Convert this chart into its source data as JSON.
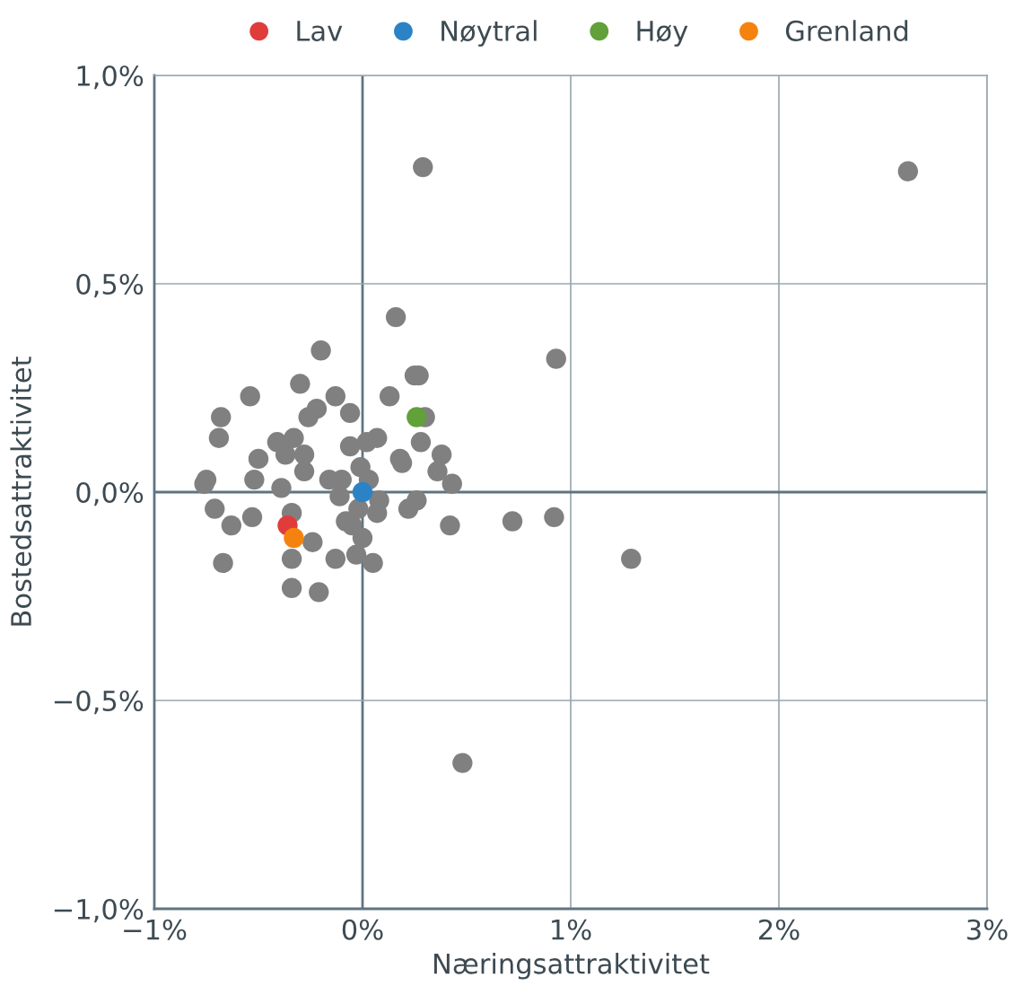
{
  "chart_data": {
    "type": "scatter",
    "xlabel": "Næringsattraktivitet",
    "ylabel": "Bostedsattraktivitet",
    "xlim": [
      -1,
      3
    ],
    "xticks": [
      {
        "value": -1,
        "label": "−1%"
      },
      {
        "value": 0,
        "label": "0%"
      },
      {
        "value": 1,
        "label": "1%"
      },
      {
        "value": 2,
        "label": "2%"
      },
      {
        "value": 3,
        "label": "3%"
      }
    ],
    "ylim": [
      -1,
      1
    ],
    "yticks": [
      {
        "value": -1,
        "label": "−1,0%"
      },
      {
        "value": -0.5,
        "label": "−0,5%"
      },
      {
        "value": 0,
        "label": "0,0%"
      },
      {
        "value": 0.5,
        "label": "0,5%"
      },
      {
        "value": 1,
        "label": "1,0%"
      }
    ],
    "grid": true,
    "legend": "top",
    "marker": "circle",
    "series": [
      {
        "color": "#808080",
        "x": [
          0.29,
          2.62,
          0.16,
          0.93,
          -0.2,
          0.25,
          0.27,
          -0.54,
          -0.3,
          -0.13,
          0.13,
          -0.22,
          -0.06,
          -0.68,
          -0.26,
          0.3,
          -0.69,
          -0.33,
          -0.41,
          -0.37,
          -0.28,
          -0.06,
          0.07,
          0.02,
          0.28,
          0.38,
          -0.5,
          -0.28,
          0.18,
          0.19,
          -0.01,
          0.36,
          -0.75,
          -0.76,
          -0.52,
          -0.16,
          -0.1,
          0.03,
          0.43,
          -0.39,
          -0.11,
          0.08,
          0.26,
          0.22,
          -0.02,
          -0.71,
          -0.53,
          -0.34,
          -0.08,
          0.07,
          -0.63,
          -0.05,
          0.42,
          0.72,
          0.92,
          0.0,
          -0.24,
          -0.34,
          -0.13,
          -0.03,
          0.05,
          -0.67,
          1.29,
          -0.34,
          -0.21,
          0.48
        ],
        "values": [
          0.78,
          0.77,
          0.42,
          0.32,
          0.34,
          0.28,
          0.28,
          0.23,
          0.26,
          0.23,
          0.23,
          0.2,
          0.19,
          0.18,
          0.18,
          0.18,
          0.13,
          0.13,
          0.12,
          0.09,
          0.09,
          0.11,
          0.13,
          0.12,
          0.12,
          0.09,
          0.08,
          0.05,
          0.08,
          0.07,
          0.06,
          0.05,
          0.03,
          0.02,
          0.03,
          0.03,
          0.03,
          0.03,
          0.02,
          0.01,
          -0.01,
          -0.02,
          -0.02,
          -0.04,
          -0.04,
          -0.04,
          -0.06,
          -0.05,
          -0.07,
          -0.05,
          -0.08,
          -0.08,
          -0.08,
          -0.07,
          -0.06,
          -0.11,
          -0.12,
          -0.16,
          -0.16,
          -0.15,
          -0.17,
          -0.17,
          -0.16,
          -0.23,
          -0.24,
          -0.65
        ]
      },
      {
        "name": "Lav",
        "color": "#e03c3c",
        "x": [
          -0.36
        ],
        "values": [
          -0.08
        ]
      },
      {
        "name": "Nøytral",
        "color": "#2b83c6",
        "x": [
          0.0
        ],
        "values": [
          0.0
        ]
      },
      {
        "name": "Høy",
        "color": "#62a03a",
        "x": [
          0.26
        ],
        "values": [
          0.18
        ]
      },
      {
        "name": "Grenland",
        "color": "#f5820f",
        "x": [
          -0.33
        ],
        "values": [
          -0.11
        ]
      }
    ]
  }
}
